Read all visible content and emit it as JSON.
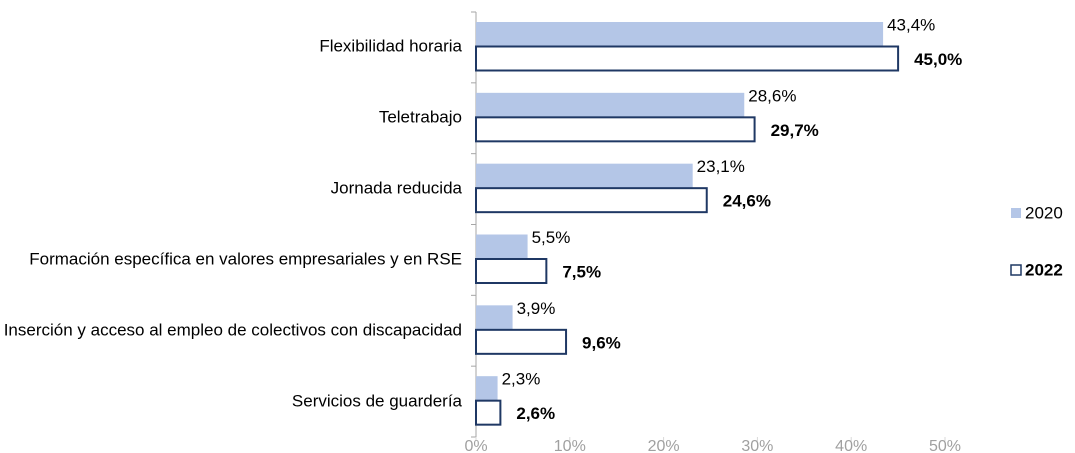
{
  "chart_data": {
    "type": "barh",
    "categories": [
      "Flexibilidad horaria",
      "Teletrabajo",
      "Jornada reducida",
      "Formación específica en valores empresariales y en RSE",
      "Inserción y acceso al empleo de colectivos con discapacidad",
      "Servicios de guardería"
    ],
    "series": [
      {
        "name": "2020",
        "color": "#b4c6e7",
        "values": [
          43.4,
          28.6,
          23.1,
          5.5,
          3.9,
          2.3
        ],
        "value_labels": [
          "43,4%",
          "28,6%",
          "23,1%",
          "5,5%",
          "3,9%",
          "2,3%"
        ]
      },
      {
        "name": "2022",
        "color": "#ffffff",
        "stroke": "#1f3864",
        "values": [
          45.0,
          29.7,
          24.6,
          7.5,
          9.6,
          2.6
        ],
        "value_labels": [
          "45,0%",
          "29,7%",
          "24,6%",
          "7,5%",
          "9,6%",
          "2,6%"
        ]
      }
    ],
    "xlim": [
      0,
      50
    ],
    "xticks": [
      {
        "value": 0,
        "label": "0%"
      },
      {
        "value": 10,
        "label": "10%"
      },
      {
        "value": 20,
        "label": "20%"
      },
      {
        "value": 30,
        "label": "30%"
      },
      {
        "value": 40,
        "label": "40%"
      },
      {
        "value": 50,
        "label": "50%"
      }
    ],
    "legend": "right"
  }
}
